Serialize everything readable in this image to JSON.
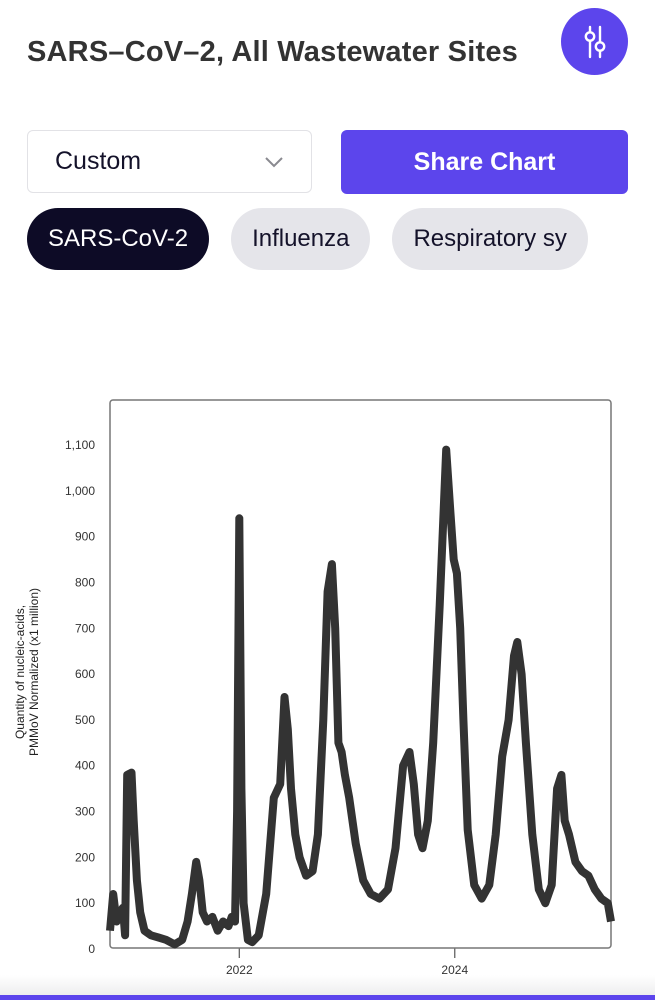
{
  "header": {
    "title": "SARS–CoV–2, All Wastewater Sites",
    "filter_icon": "sliders-icon"
  },
  "controls": {
    "date_range_select": {
      "value": "Custom",
      "icon": "chevron-down-icon"
    },
    "share_button": {
      "label": "Share Chart"
    }
  },
  "pathogen_tabs": [
    {
      "label": "SARS-CoV-2",
      "active": true
    },
    {
      "label": "Influenza",
      "active": false
    },
    {
      "label": "Respiratory sy",
      "active": false
    }
  ],
  "colors": {
    "accent": "#5c45ec",
    "active_pill": "#0d0b26",
    "inactive_pill": "#e5e5ea",
    "line": "#333333"
  },
  "chart_data": {
    "type": "line",
    "title": "SARS–CoV–2, All Wastewater Sites",
    "xlabel": "",
    "ylabel": "Quantity of nucleic-acids, PMMoV Normalized (x1 million)",
    "ylabel_lines": [
      "Quantity of nucleic-acids,",
      "PMMoV Normalized (x1 million)"
    ],
    "yticks": [
      0,
      100,
      200,
      300,
      400,
      500,
      600,
      700,
      800,
      900,
      1000,
      1100
    ],
    "ytick_labels": [
      "0",
      "100",
      "200",
      "300",
      "400",
      "500",
      "600",
      "700",
      "800",
      "900",
      "1,000",
      "1,100"
    ],
    "xticks": [
      2022,
      2024
    ],
    "xtick_labels": [
      "2022",
      "2024"
    ],
    "xlim": [
      2020.8,
      2025.45
    ],
    "ylim": [
      0,
      1200
    ],
    "grid": false,
    "legend": null,
    "series": [
      {
        "name": "SARS-CoV-2",
        "x": [
          2020.8,
          2020.83,
          2020.86,
          2020.89,
          2020.92,
          2020.94,
          2020.96,
          2021.0,
          2021.02,
          2021.05,
          2021.08,
          2021.12,
          2021.18,
          2021.25,
          2021.32,
          2021.4,
          2021.47,
          2021.52,
          2021.56,
          2021.6,
          2021.63,
          2021.66,
          2021.7,
          2021.75,
          2021.8,
          2021.85,
          2021.9,
          2021.93,
          2021.96,
          2021.98,
          2022.0,
          2022.02,
          2022.04,
          2022.08,
          2022.12,
          2022.18,
          2022.25,
          2022.32,
          2022.38,
          2022.42,
          2022.45,
          2022.48,
          2022.52,
          2022.56,
          2022.62,
          2022.68,
          2022.73,
          2022.78,
          2022.82,
          2022.86,
          2022.89,
          2022.92,
          2022.95,
          2022.98,
          2023.02,
          2023.08,
          2023.15,
          2023.22,
          2023.3,
          2023.38,
          2023.45,
          2023.52,
          2023.58,
          2023.62,
          2023.66,
          2023.7,
          2023.75,
          2023.8,
          2023.86,
          2023.92,
          2023.96,
          2023.99,
          2024.02,
          2024.05,
          2024.08,
          2024.12,
          2024.18,
          2024.25,
          2024.32,
          2024.38,
          2024.44,
          2024.5,
          2024.55,
          2024.58,
          2024.62,
          2024.66,
          2024.72,
          2024.78,
          2024.84,
          2024.9,
          2024.95,
          2024.99,
          2025.02,
          2025.06,
          2025.12,
          2025.18,
          2025.24,
          2025.3,
          2025.36,
          2025.42,
          2025.45
        ],
        "values": [
          40,
          120,
          60,
          80,
          90,
          30,
          380,
          385,
          280,
          150,
          80,
          40,
          30,
          25,
          20,
          10,
          20,
          60,
          120,
          190,
          150,
          80,
          60,
          70,
          40,
          60,
          50,
          70,
          60,
          300,
          940,
          350,
          100,
          20,
          15,
          30,
          120,
          330,
          360,
          550,
          480,
          350,
          250,
          200,
          160,
          170,
          250,
          500,
          780,
          840,
          700,
          450,
          430,
          380,
          330,
          230,
          150,
          120,
          110,
          130,
          220,
          400,
          430,
          360,
          250,
          220,
          280,
          450,
          750,
          1090,
          950,
          850,
          820,
          700,
          500,
          260,
          140,
          110,
          140,
          250,
          420,
          500,
          640,
          670,
          600,
          450,
          250,
          130,
          100,
          140,
          350,
          380,
          280,
          250,
          190,
          170,
          160,
          130,
          110,
          100,
          60
        ]
      }
    ]
  }
}
